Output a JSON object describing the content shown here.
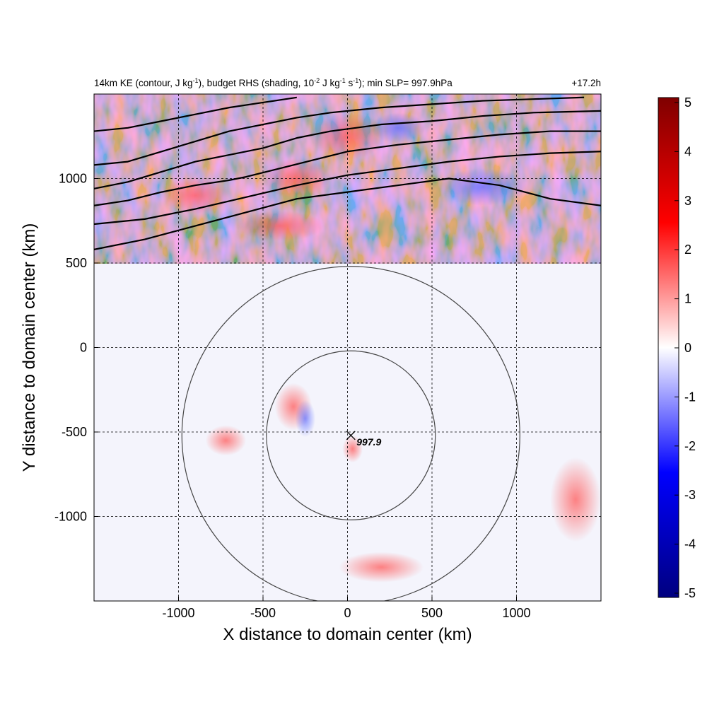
{
  "chart_data": {
    "type": "heatmap",
    "title": {
      "part1": "14km KE (contour, J kg",
      "sup1": "-1",
      "part2": "), budget RHS (shading, 10",
      "sup2": "-2",
      "part3": " J kg",
      "sup3": "-1",
      "part4": " s",
      "sup4": "-1",
      "part5": "); min SLP= 997.9hPa"
    },
    "time_label": "+17.2h",
    "xlabel": "X distance to domain center (km)",
    "ylabel": "Y distance to domain center (km)",
    "xlim": [
      -1500,
      1500
    ],
    "ylim": [
      -1500,
      1500
    ],
    "x_ticks": [
      {
        "value": -1000,
        "label": "-1000"
      },
      {
        "value": -500,
        "label": "-500"
      },
      {
        "value": 0,
        "label": "0"
      },
      {
        "value": 500,
        "label": "500"
      },
      {
        "value": 1000,
        "label": "1000"
      }
    ],
    "y_ticks": [
      {
        "value": 1000,
        "label": "1000"
      },
      {
        "value": 500,
        "label": "500"
      },
      {
        "value": 0,
        "label": "0"
      },
      {
        "value": -500,
        "label": "-500"
      },
      {
        "value": -1000,
        "label": "-1000"
      }
    ],
    "grid": "dashed",
    "colorbar": {
      "range": [
        -5,
        5
      ],
      "ticks": [
        {
          "value": 5,
          "label": "5"
        },
        {
          "value": 4,
          "label": "4"
        },
        {
          "value": 3,
          "label": "3"
        },
        {
          "value": 2,
          "label": "2"
        },
        {
          "value": 1,
          "label": "1"
        },
        {
          "value": 0,
          "label": "0"
        },
        {
          "value": -1,
          "label": "-1"
        },
        {
          "value": -2,
          "label": "-2"
        },
        {
          "value": -3,
          "label": "-3"
        },
        {
          "value": -4,
          "label": "-4"
        },
        {
          "value": -5,
          "label": "-5"
        }
      ],
      "colors": [
        "#00007f",
        "#0000ff",
        "#ffffff",
        "#ff0000",
        "#7f0000"
      ]
    },
    "storm_center": {
      "x": 20,
      "y": -520,
      "min_slp_label": "997.9"
    },
    "range_circles_km": [
      500,
      1000
    ],
    "ke_contours": [
      {
        "points": [
          [
            -1500,
            580
          ],
          [
            -1200,
            640
          ],
          [
            -900,
            720
          ],
          [
            -600,
            800
          ],
          [
            -300,
            880
          ],
          [
            0,
            920
          ],
          [
            300,
            960
          ],
          [
            600,
            1000
          ],
          [
            900,
            960
          ],
          [
            1200,
            880
          ],
          [
            1500,
            840
          ]
        ]
      },
      {
        "points": [
          [
            -1500,
            730
          ],
          [
            -1200,
            760
          ],
          [
            -900,
            820
          ],
          [
            -600,
            890
          ],
          [
            -300,
            960
          ],
          [
            0,
            1020
          ],
          [
            300,
            1060
          ],
          [
            600,
            1100
          ],
          [
            900,
            1130
          ],
          [
            1200,
            1150
          ],
          [
            1500,
            1160
          ]
        ]
      },
      {
        "points": [
          [
            -1500,
            840
          ],
          [
            -1300,
            870
          ],
          [
            -1100,
            920
          ],
          [
            -900,
            960
          ],
          [
            -700,
            990
          ],
          [
            -600,
            1010
          ],
          [
            -400,
            1060
          ],
          [
            -200,
            1110
          ],
          [
            0,
            1160
          ],
          [
            300,
            1200
          ],
          [
            600,
            1230
          ],
          [
            900,
            1260
          ],
          [
            1200,
            1280
          ],
          [
            1500,
            1280
          ]
        ]
      },
      {
        "points": [
          [
            -1500,
            940
          ],
          [
            -1300,
            980
          ],
          [
            -1100,
            1040
          ],
          [
            -900,
            1100
          ],
          [
            -700,
            1140
          ],
          [
            -500,
            1180
          ],
          [
            -300,
            1240
          ],
          [
            -100,
            1280
          ],
          [
            200,
            1320
          ],
          [
            500,
            1340
          ],
          [
            800,
            1370
          ],
          [
            1100,
            1390
          ],
          [
            1500,
            1400
          ]
        ]
      },
      {
        "points": [
          [
            -1500,
            1080
          ],
          [
            -1300,
            1100
          ],
          [
            -1100,
            1160
          ],
          [
            -900,
            1220
          ],
          [
            -700,
            1280
          ],
          [
            -500,
            1320
          ],
          [
            -300,
            1360
          ],
          [
            -100,
            1390
          ],
          [
            200,
            1420
          ],
          [
            500,
            1440
          ],
          [
            800,
            1460
          ],
          [
            1100,
            1470
          ],
          [
            1400,
            1480
          ]
        ]
      },
      {
        "points": [
          [
            -1500,
            1280
          ],
          [
            -1300,
            1300
          ],
          [
            -1100,
            1340
          ],
          [
            -900,
            1380
          ],
          [
            -700,
            1420
          ],
          [
            -500,
            1450
          ],
          [
            -300,
            1480
          ]
        ]
      }
    ]
  }
}
